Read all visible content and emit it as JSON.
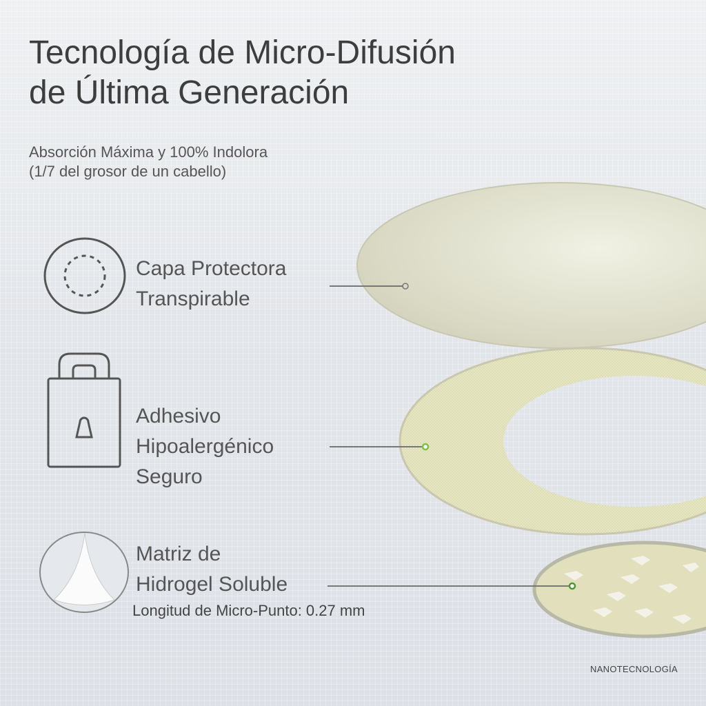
{
  "header": {
    "title_line1": "Tecnología de Micro-Difusión",
    "title_line2": "de Última Generación",
    "subtitle_line1": "Absorción Máxima y 100% Indolora",
    "subtitle_line2": "(1/7 del grosor de un cabello)"
  },
  "layers": [
    {
      "icon": "dashed-circle-icon",
      "lines": [
        "Capa Protectora",
        "Transpirable"
      ]
    },
    {
      "icon": "padlock-icon",
      "lines": [
        "Adhesivo",
        "Hipoalergénico",
        "Seguro"
      ]
    },
    {
      "icon": "microneedle-cone-icon",
      "lines": [
        "Matriz de",
        "Hidrogel Soluble"
      ],
      "note": "Longitud de Micro-Punto: 0.27 mm"
    }
  ],
  "footer": {
    "brand": "NANOTECNOLOGÍA"
  },
  "colors": {
    "text": "#4a4a4a",
    "layer_top": "#dcdcc8",
    "layer_mid": "#e6e6c2",
    "layer_bottom": "#e0ddb8",
    "accent_dot": "#7bc043"
  }
}
